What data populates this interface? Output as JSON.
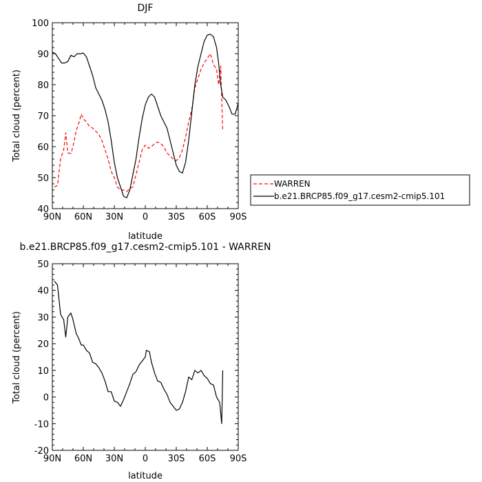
{
  "chart_data": [
    {
      "type": "line",
      "title": "DJF",
      "xlabel": "latitude",
      "ylabel": "Total cloud (percent)",
      "xlim": [
        90,
        -90
      ],
      "ylim": [
        40,
        100
      ],
      "xticks": [
        {
          "value": 90,
          "label": "90N"
        },
        {
          "value": 60,
          "label": "60N"
        },
        {
          "value": 30,
          "label": "30N"
        },
        {
          "value": 0,
          "label": "0"
        },
        {
          "value": -30,
          "label": "30S"
        },
        {
          "value": -60,
          "label": "60S"
        },
        {
          "value": -90,
          "label": "90S"
        }
      ],
      "yticks": [
        40,
        50,
        60,
        70,
        80,
        90,
        100
      ],
      "legend_position": "right",
      "series": [
        {
          "name": "WARREN",
          "color": "#ff0000",
          "style": "dashed",
          "points": [
            [
              88,
              47
            ],
            [
              85,
              47.5
            ],
            [
              82,
              56
            ],
            [
              79,
              59
            ],
            [
              77,
              64.5
            ],
            [
              75,
              58
            ],
            [
              72,
              57.8
            ],
            [
              70,
              60
            ],
            [
              67,
              65
            ],
            [
              64,
              68
            ],
            [
              62,
              70.5
            ],
            [
              60,
              69
            ],
            [
              57,
              68
            ],
            [
              54,
              66.5
            ],
            [
              51,
              66
            ],
            [
              48,
              65
            ],
            [
              45,
              64
            ],
            [
              42,
              62
            ],
            [
              39,
              59
            ],
            [
              36,
              56
            ],
            [
              33,
              52
            ],
            [
              30,
              50
            ],
            [
              27,
              47
            ],
            [
              24,
              46
            ],
            [
              21,
              46
            ],
            [
              18,
              45.5
            ],
            [
              15,
              46.5
            ],
            [
              12,
              47
            ],
            [
              9,
              51
            ],
            [
              6,
              55
            ],
            [
              3,
              59
            ],
            [
              0,
              60.5
            ],
            [
              -3,
              59.5
            ],
            [
              -6,
              60
            ],
            [
              -9,
              61
            ],
            [
              -12,
              61.5
            ],
            [
              -15,
              61
            ],
            [
              -18,
              60
            ],
            [
              -21,
              58
            ],
            [
              -24,
              57
            ],
            [
              -27,
              56
            ],
            [
              -30,
              55.5
            ],
            [
              -33,
              56.5
            ],
            [
              -36,
              59
            ],
            [
              -39,
              63
            ],
            [
              -42,
              68
            ],
            [
              -45,
              72
            ],
            [
              -48,
              79
            ],
            [
              -51,
              82
            ],
            [
              -54,
              85
            ],
            [
              -57,
              87
            ],
            [
              -60,
              88.5
            ],
            [
              -63,
              90
            ],
            [
              -66,
              86.5
            ],
            [
              -69,
              85
            ],
            [
              -71,
              80
            ],
            [
              -73,
              86
            ],
            [
              -75,
              65
            ]
          ]
        },
        {
          "name": "b.e21.BRCP85.f09_g17.cesm2-cmip5.101",
          "color": "#000000",
          "style": "solid",
          "points": [
            [
              90,
              90.5
            ],
            [
              87,
              90
            ],
            [
              84,
              88.5
            ],
            [
              81,
              87
            ],
            [
              78,
              87
            ],
            [
              75,
              87.5
            ],
            [
              72,
              89.5
            ],
            [
              69,
              89
            ],
            [
              66,
              90
            ],
            [
              63,
              90
            ],
            [
              60,
              90.2
            ],
            [
              57,
              89
            ],
            [
              54,
              86
            ],
            [
              51,
              83
            ],
            [
              48,
              79
            ],
            [
              45,
              77
            ],
            [
              42,
              75
            ],
            [
              39,
              72
            ],
            [
              36,
              68
            ],
            [
              33,
              62
            ],
            [
              30,
              55
            ],
            [
              27,
              50
            ],
            [
              24,
              47
            ],
            [
              21,
              44
            ],
            [
              18,
              43.5
            ],
            [
              15,
              46
            ],
            [
              12,
              51
            ],
            [
              9,
              56
            ],
            [
              6,
              63
            ],
            [
              3,
              69
            ],
            [
              0,
              73.5
            ],
            [
              -3,
              76
            ],
            [
              -6,
              77
            ],
            [
              -9,
              76
            ],
            [
              -12,
              73
            ],
            [
              -15,
              70
            ],
            [
              -18,
              68
            ],
            [
              -21,
              66
            ],
            [
              -24,
              62
            ],
            [
              -27,
              58
            ],
            [
              -30,
              54
            ],
            [
              -33,
              52
            ],
            [
              -36,
              51.5
            ],
            [
              -39,
              55
            ],
            [
              -42,
              62
            ],
            [
              -45,
              71
            ],
            [
              -48,
              80
            ],
            [
              -51,
              86
            ],
            [
              -54,
              90
            ],
            [
              -57,
              94
            ],
            [
              -60,
              96
            ],
            [
              -63,
              96.3
            ],
            [
              -66,
              95.5
            ],
            [
              -69,
              92
            ],
            [
              -71,
              87
            ],
            [
              -73,
              80
            ],
            [
              -75,
              76
            ],
            [
              -78,
              75
            ],
            [
              -81,
              73
            ],
            [
              -84,
              70.5
            ],
            [
              -87,
              70.5
            ],
            [
              -90,
              74
            ]
          ]
        }
      ]
    },
    {
      "type": "line",
      "title": "b.e21.BRCP85.f09_g17.cesm2-cmip5.101 - WARREN",
      "xlabel": "latitude",
      "ylabel": "Total cloud (percent)",
      "xlim": [
        90,
        -90
      ],
      "ylim": [
        -20,
        50
      ],
      "xticks": [
        {
          "value": 90,
          "label": "90N"
        },
        {
          "value": 60,
          "label": "60N"
        },
        {
          "value": 30,
          "label": "30N"
        },
        {
          "value": 0,
          "label": "0"
        },
        {
          "value": -30,
          "label": "30S"
        },
        {
          "value": -60,
          "label": "60S"
        },
        {
          "value": -90,
          "label": "90S"
        }
      ],
      "yticks": [
        -20,
        -10,
        0,
        10,
        20,
        30,
        40,
        50
      ],
      "series": [
        {
          "color": "#000000",
          "style": "solid",
          "points": [
            [
              88,
              43.5
            ],
            [
              85,
              42
            ],
            [
              82,
              31
            ],
            [
              79,
              29
            ],
            [
              77,
              22.5
            ],
            [
              75,
              30
            ],
            [
              72,
              31.5
            ],
            [
              70,
              29
            ],
            [
              67,
              24
            ],
            [
              64,
              21.5
            ],
            [
              62,
              19.5
            ],
            [
              60,
              19.5
            ],
            [
              57,
              17.5
            ],
            [
              54,
              16.5
            ],
            [
              51,
              13
            ],
            [
              48,
              12.5
            ],
            [
              45,
              11
            ],
            [
              42,
              9
            ],
            [
              39,
              6
            ],
            [
              36,
              2
            ],
            [
              33,
              2
            ],
            [
              30,
              -1.5
            ],
            [
              27,
              -2
            ],
            [
              24,
              -3.5
            ],
            [
              21,
              -1
            ],
            [
              18,
              2
            ],
            [
              15,
              5
            ],
            [
              12,
              8.5
            ],
            [
              9,
              9.5
            ],
            [
              6,
              12
            ],
            [
              3,
              13.5
            ],
            [
              0,
              15
            ],
            [
              -1,
              17.5
            ],
            [
              -4,
              17
            ],
            [
              -6,
              13
            ],
            [
              -9,
              9
            ],
            [
              -12,
              6
            ],
            [
              -15,
              5.5
            ],
            [
              -18,
              3
            ],
            [
              -21,
              1
            ],
            [
              -24,
              -2
            ],
            [
              -27,
              -3.5
            ],
            [
              -30,
              -5
            ],
            [
              -33,
              -4.5
            ],
            [
              -36,
              -2
            ],
            [
              -39,
              2
            ],
            [
              -42,
              7.5
            ],
            [
              -45,
              6.5
            ],
            [
              -48,
              10
            ],
            [
              -51,
              9
            ],
            [
              -54,
              10
            ],
            [
              -57,
              8
            ],
            [
              -60,
              7
            ],
            [
              -63,
              5
            ],
            [
              -66,
              4.5
            ],
            [
              -69,
              0
            ],
            [
              -72,
              -2
            ],
            [
              -74,
              -10
            ],
            [
              -75,
              10
            ]
          ]
        }
      ]
    }
  ]
}
